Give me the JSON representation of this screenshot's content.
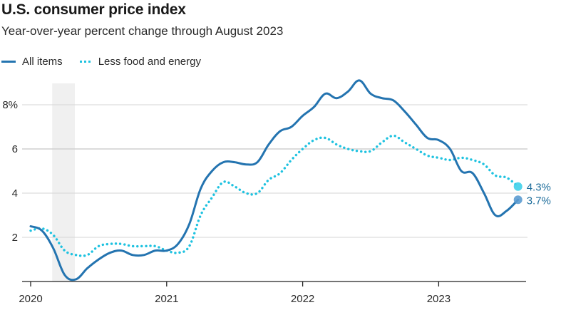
{
  "chart_data": {
    "type": "line",
    "title": "U.S. consumer price index",
    "subtitle": "Year-over-year percent change through August 2023",
    "xlabel": "",
    "ylabel": "",
    "x_start": "2020-01",
    "x_end": "2023-08",
    "x_ticks": [
      {
        "label": "2020",
        "month_index": 0
      },
      {
        "label": "2021",
        "month_index": 12
      },
      {
        "label": "2022",
        "month_index": 24
      },
      {
        "label": "2023",
        "month_index": 36
      }
    ],
    "ylim": [
      0,
      9.2
    ],
    "y_ticks": [
      {
        "label": "2",
        "value": 2
      },
      {
        "label": "4",
        "value": 4
      },
      {
        "label": "6",
        "value": 6
      },
      {
        "label": "8%",
        "value": 8
      }
    ],
    "grid": true,
    "legend_placement": "top-left",
    "shaded_periods": [
      {
        "name": "recession",
        "start_month_index": 1.9,
        "end_month_index": 3.9
      }
    ],
    "series": [
      {
        "name": "All items",
        "style": "solid",
        "color": "#2474b0",
        "values": [
          2.5,
          2.3,
          1.5,
          0.3,
          0.1,
          0.6,
          1.0,
          1.3,
          1.4,
          1.2,
          1.2,
          1.4,
          1.4,
          1.7,
          2.6,
          4.2,
          5.0,
          5.4,
          5.4,
          5.3,
          5.4,
          6.2,
          6.8,
          7.0,
          7.5,
          7.9,
          8.5,
          8.3,
          8.6,
          9.1,
          8.5,
          8.3,
          8.2,
          7.7,
          7.1,
          6.5,
          6.4,
          6.0,
          5.0,
          4.9,
          4.0,
          3.0,
          3.2,
          3.7
        ],
        "end_label": "3.7%",
        "end_marker_color": "#5b9bd0"
      },
      {
        "name": "Less food and energy",
        "style": "dotted",
        "color": "#1ec2e0",
        "values": [
          2.3,
          2.4,
          2.1,
          1.4,
          1.2,
          1.2,
          1.6,
          1.7,
          1.7,
          1.6,
          1.6,
          1.6,
          1.4,
          1.3,
          1.6,
          3.0,
          3.8,
          4.5,
          4.3,
          4.0,
          4.0,
          4.6,
          4.9,
          5.5,
          6.0,
          6.4,
          6.5,
          6.2,
          6.0,
          5.9,
          5.9,
          6.3,
          6.6,
          6.3,
          6.0,
          5.7,
          5.6,
          5.5,
          5.6,
          5.5,
          5.3,
          4.8,
          4.7,
          4.3
        ],
        "end_label": "4.3%",
        "end_marker_color": "#3fd0ea"
      }
    ]
  },
  "legend": {
    "items": [
      {
        "label": "All items"
      },
      {
        "label": "Less food and energy"
      }
    ]
  }
}
